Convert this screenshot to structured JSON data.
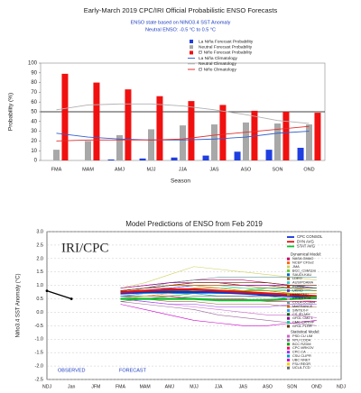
{
  "chart_data": [
    {
      "type": "bar",
      "title": "Early-March 2019 CPC/IRI Official Probabilistic ENSO Forecasts",
      "subtitle": [
        "ENSO state based on NINO3.4 SST Anomaly",
        "Neutral ENSO: -0.5 °C to 0.5 °C"
      ],
      "ylabel": "Probability (%)",
      "xlabel": "Season",
      "categories": [
        "FMA",
        "MAM",
        "AMJ",
        "MJJ",
        "JJA",
        "JAS",
        "ASO",
        "SON",
        "OND"
      ],
      "ylim": [
        0,
        100
      ],
      "yticks": [
        0,
        10,
        20,
        30,
        40,
        50,
        60,
        70,
        80,
        90,
        100
      ],
      "threshold": 50,
      "series": [
        {
          "name": "La Niña Forecast Probability",
          "kind": "bar",
          "color": "#1f3fe0",
          "values": [
            0,
            0,
            1,
            2,
            3,
            5,
            9,
            11,
            13
          ]
        },
        {
          "name": "Neutral Forecast Probability",
          "kind": "bar",
          "color": "#a8a8a8",
          "values": [
            11,
            20,
            26,
            32,
            36,
            37,
            39,
            38,
            37
          ]
        },
        {
          "name": "El Niño Forecast Probability",
          "kind": "bar",
          "color": "#f01010",
          "values": [
            89,
            80,
            73,
            66,
            61,
            57,
            51,
            50,
            49
          ]
        },
        {
          "name": "La Niña Climatology",
          "kind": "line",
          "color": "#3060d0",
          "values": [
            28,
            24,
            22,
            21,
            21,
            22,
            24,
            28,
            30
          ]
        },
        {
          "name": "Neutral Climatology",
          "kind": "line",
          "color": "#b0b0b0",
          "values": [
            52,
            57,
            58,
            58,
            56,
            52,
            47,
            41,
            38
          ]
        },
        {
          "name": "El Niño Climatology",
          "kind": "line",
          "color": "#e03030",
          "values": [
            20,
            21,
            21,
            21,
            22,
            26,
            29,
            32,
            35
          ]
        }
      ]
    },
    {
      "type": "line",
      "title": "Model Predictions of ENSO from Feb 2019",
      "ylabel": "Niño3.4 SST Anomaly (°C)",
      "annotations": [
        "IRI/CPC",
        "OBSERVED",
        "FORECAST"
      ],
      "legend_groups": [
        "Dynamical Model:",
        "Statistical Model:"
      ],
      "categories": [
        "NDJ",
        "Jan",
        "JFM",
        "FMA",
        "MAM",
        "AMJ",
        "MJJ",
        "JJA",
        "JAS",
        "ASO",
        "SON",
        "OND",
        "NDJ"
      ],
      "ylim": [
        -2.5,
        3
      ],
      "yticks": [
        -2.5,
        {
          "value": -2,
          "label": "-2.0"
        },
        -1.5,
        {
          "value": -1,
          "label": "-1.0"
        },
        -0.5,
        {
          "value": 0,
          "label": "0.0"
        },
        0.5,
        {
          "value": 1,
          "label": "1.0"
        },
        1.5,
        {
          "value": 2,
          "label": "2.0"
        },
        2.5,
        {
          "value": 3,
          "label": "3.0"
        }
      ],
      "grid": true,
      "series": [
        {
          "kind": "obs",
          "color": "#000000",
          "values": [
            0.8,
            0.5,
            null,
            null,
            null,
            null,
            null,
            null,
            null,
            null,
            null,
            null,
            null
          ]
        },
        {
          "name": "CPC CONSOL",
          "kind": "avg",
          "color": "#1030e0",
          "values": [
            null,
            null,
            null,
            0.7,
            0.75,
            0.75,
            0.75,
            0.75,
            0.7,
            0.65,
            0.6,
            0.55,
            null
          ]
        },
        {
          "name": "DYN AVG",
          "kind": "avg",
          "color": "#e01010",
          "values": [
            null,
            null,
            null,
            0.75,
            0.8,
            0.85,
            0.85,
            0.8,
            0.75,
            0.7,
            0.65,
            0.6,
            null
          ]
        },
        {
          "name": "STAT AVG",
          "kind": "avg",
          "color": "#10c030",
          "values": [
            null,
            null,
            null,
            0.5,
            0.5,
            0.5,
            0.5,
            0.45,
            0.45,
            0.45,
            0.5,
            0.55,
            null
          ]
        },
        {
          "name": "NASA GMAO",
          "kind": "dyn",
          "color": "#cc0066",
          "values": [
            null,
            null,
            null,
            0.9,
            1.0,
            1.1,
            1.2,
            1.2,
            1.2,
            1.1,
            1.0,
            0.9,
            null
          ]
        },
        {
          "name": "NCEP CFSv2",
          "kind": "dyn",
          "color": "#ff6600",
          "values": [
            null,
            null,
            null,
            0.8,
            0.9,
            1.0,
            1.0,
            0.9,
            0.8,
            0.8,
            0.7,
            0.6,
            null
          ]
        },
        {
          "name": "JMA",
          "kind": "dyn",
          "color": "#d0d060",
          "values": [
            null,
            null,
            null,
            0.9,
            1.1,
            1.4,
            1.7,
            1.6,
            1.5,
            1.4,
            1.3,
            1.2,
            null
          ]
        },
        {
          "name": "BCC_CSM11m",
          "kind": "dyn",
          "color": "#66cc33",
          "values": [
            null,
            null,
            null,
            0.6,
            0.7,
            0.8,
            0.9,
            0.9,
            0.9,
            0.8,
            0.8,
            0.8,
            null
          ]
        },
        {
          "name": "SAUDI-KAU",
          "kind": "dyn",
          "color": "#0066cc",
          "values": [
            null,
            null,
            null,
            0.7,
            0.8,
            0.9,
            1.0,
            1.0,
            1.0,
            1.0,
            0.9,
            0.9,
            null
          ]
        },
        {
          "name": "LDEO",
          "kind": "dyn",
          "color": "#996633",
          "values": [
            null,
            null,
            null,
            0.6,
            0.5,
            0.4,
            0.4,
            0.3,
            0.3,
            0.3,
            0.2,
            0.2,
            null
          ]
        },
        {
          "name": "AUS/POAMA",
          "kind": "dyn",
          "color": "#33cccc",
          "values": [
            null,
            null,
            null,
            0.8,
            0.9,
            1.0,
            1.0,
            1.0,
            0.9,
            0.9,
            0.8,
            0.8,
            null
          ]
        },
        {
          "name": "ECMWF",
          "kind": "dyn",
          "color": "#cc3300",
          "values": [
            null,
            null,
            null,
            0.8,
            0.9,
            1.0,
            1.1,
            1.1,
            1.0,
            1.0,
            0.9,
            0.9,
            null
          ]
        },
        {
          "name": "UKMO",
          "kind": "dyn",
          "color": "#6633cc",
          "values": [
            null,
            null,
            null,
            0.8,
            0.9,
            0.9,
            1.0,
            1.0,
            1.0,
            1.0,
            1.0,
            0.9,
            null
          ]
        },
        {
          "name": "KMA SNU",
          "kind": "dyn",
          "color": "#999900",
          "values": [
            null,
            null,
            null,
            0.7,
            0.8,
            0.8,
            0.9,
            0.9,
            0.8,
            0.8,
            0.7,
            0.7,
            null
          ]
        },
        {
          "name": "IOCAS ICM",
          "kind": "dyn",
          "color": "#ff99cc",
          "values": [
            null,
            null,
            null,
            0.6,
            0.6,
            0.7,
            0.7,
            0.6,
            0.6,
            0.5,
            0.5,
            0.4,
            null
          ]
        },
        {
          "name": "COLA CCSM4",
          "kind": "dyn",
          "color": "#669999",
          "values": [
            null,
            null,
            null,
            0.7,
            0.9,
            1.1,
            1.2,
            1.3,
            1.3,
            1.3,
            1.3,
            1.3,
            null
          ]
        },
        {
          "name": "MetFRANCE",
          "kind": "dyn",
          "color": "#cc6600",
          "values": [
            null,
            null,
            null,
            0.8,
            0.9,
            1.0,
            1.0,
            1.0,
            1.0,
            0.9,
            0.9,
            0.8,
            null
          ]
        },
        {
          "name": "SINTEX-F",
          "kind": "dyn",
          "color": "#3399ff",
          "values": [
            null,
            null,
            null,
            0.6,
            0.7,
            0.8,
            0.8,
            0.8,
            0.7,
            0.7,
            0.6,
            0.6,
            null
          ]
        },
        {
          "name": "CS-IRI-MM",
          "kind": "dyn",
          "color": "#006600",
          "values": [
            null,
            null,
            null,
            0.7,
            0.8,
            0.8,
            0.8,
            0.7,
            0.7,
            0.6,
            0.6,
            0.5,
            null
          ]
        },
        {
          "name": "GFDL CM2.1",
          "kind": "dyn",
          "color": "#990099",
          "values": [
            null,
            null,
            null,
            0.9,
            1.0,
            1.1,
            1.1,
            1.1,
            1.0,
            1.0,
            1.0,
            1.0,
            null
          ]
        },
        {
          "name": "CMC CANSIP",
          "kind": "dyn",
          "color": "#00cc99",
          "values": [
            null,
            null,
            null,
            0.7,
            0.7,
            0.7,
            0.7,
            0.6,
            0.6,
            0.6,
            0.5,
            0.5,
            null
          ]
        },
        {
          "name": "GFDL FLOR",
          "kind": "dyn",
          "color": "#663300",
          "values": [
            null,
            null,
            null,
            0.8,
            0.9,
            1.0,
            1.1,
            1.1,
            1.1,
            1.1,
            1.0,
            1.0,
            null
          ]
        },
        {
          "name": "PSD CU LIM",
          "kind": "stat",
          "color": "#cc66cc",
          "values": [
            null,
            null,
            null,
            0.5,
            0.4,
            0.3,
            0.2,
            0.1,
            0.0,
            -0.1,
            -0.1,
            -0.2,
            null
          ]
        },
        {
          "name": "NTU CODA",
          "kind": "stat",
          "color": "#996699",
          "values": [
            null,
            null,
            null,
            0.4,
            0.3,
            0.2,
            0.1,
            -0.1,
            -0.2,
            -0.3,
            -0.4,
            -0.5,
            null
          ]
        },
        {
          "name": "BCC RZDM",
          "kind": "stat",
          "color": "#00aa00",
          "values": [
            null,
            null,
            null,
            0.5,
            0.5,
            0.6,
            0.7,
            0.8,
            0.8,
            0.9,
            0.9,
            0.9,
            null
          ]
        },
        {
          "name": "CPC MRKOV",
          "kind": "stat",
          "color": "#ff0066",
          "values": [
            null,
            null,
            null,
            0.6,
            0.6,
            0.6,
            0.5,
            0.5,
            0.5,
            0.4,
            0.4,
            0.4,
            null
          ]
        },
        {
          "name": "CPC CA",
          "kind": "stat",
          "color": "#9933ff",
          "values": [
            null,
            null,
            null,
            0.5,
            0.4,
            0.3,
            0.3,
            0.2,
            0.2,
            0.2,
            0.3,
            0.3,
            null
          ]
        },
        {
          "name": "CSU CLIPR",
          "kind": "stat",
          "color": "#0099cc",
          "values": [
            null,
            null,
            null,
            0.6,
            0.6,
            0.7,
            0.7,
            0.7,
            0.7,
            0.7,
            0.6,
            0.6,
            null
          ]
        },
        {
          "name": "UBC NNET",
          "kind": "stat",
          "color": "#cc00cc",
          "values": [
            null,
            null,
            null,
            0.3,
            0.1,
            -0.1,
            -0.3,
            -0.4,
            -0.5,
            -0.5,
            -0.4,
            -0.3,
            null
          ]
        },
        {
          "name": "FSU REGR",
          "kind": "stat",
          "color": "#ffcc00",
          "values": [
            null,
            null,
            null,
            0.5,
            0.6,
            0.7,
            0.8,
            0.8,
            0.8,
            0.7,
            0.7,
            0.6,
            null
          ]
        },
        {
          "name": "UCLA-TCD",
          "kind": "stat",
          "color": "#666666",
          "values": [
            null,
            null,
            null,
            0.4,
            0.5,
            0.5,
            0.6,
            0.6,
            0.6,
            0.6,
            0.5,
            0.5,
            null
          ]
        }
      ]
    }
  ]
}
